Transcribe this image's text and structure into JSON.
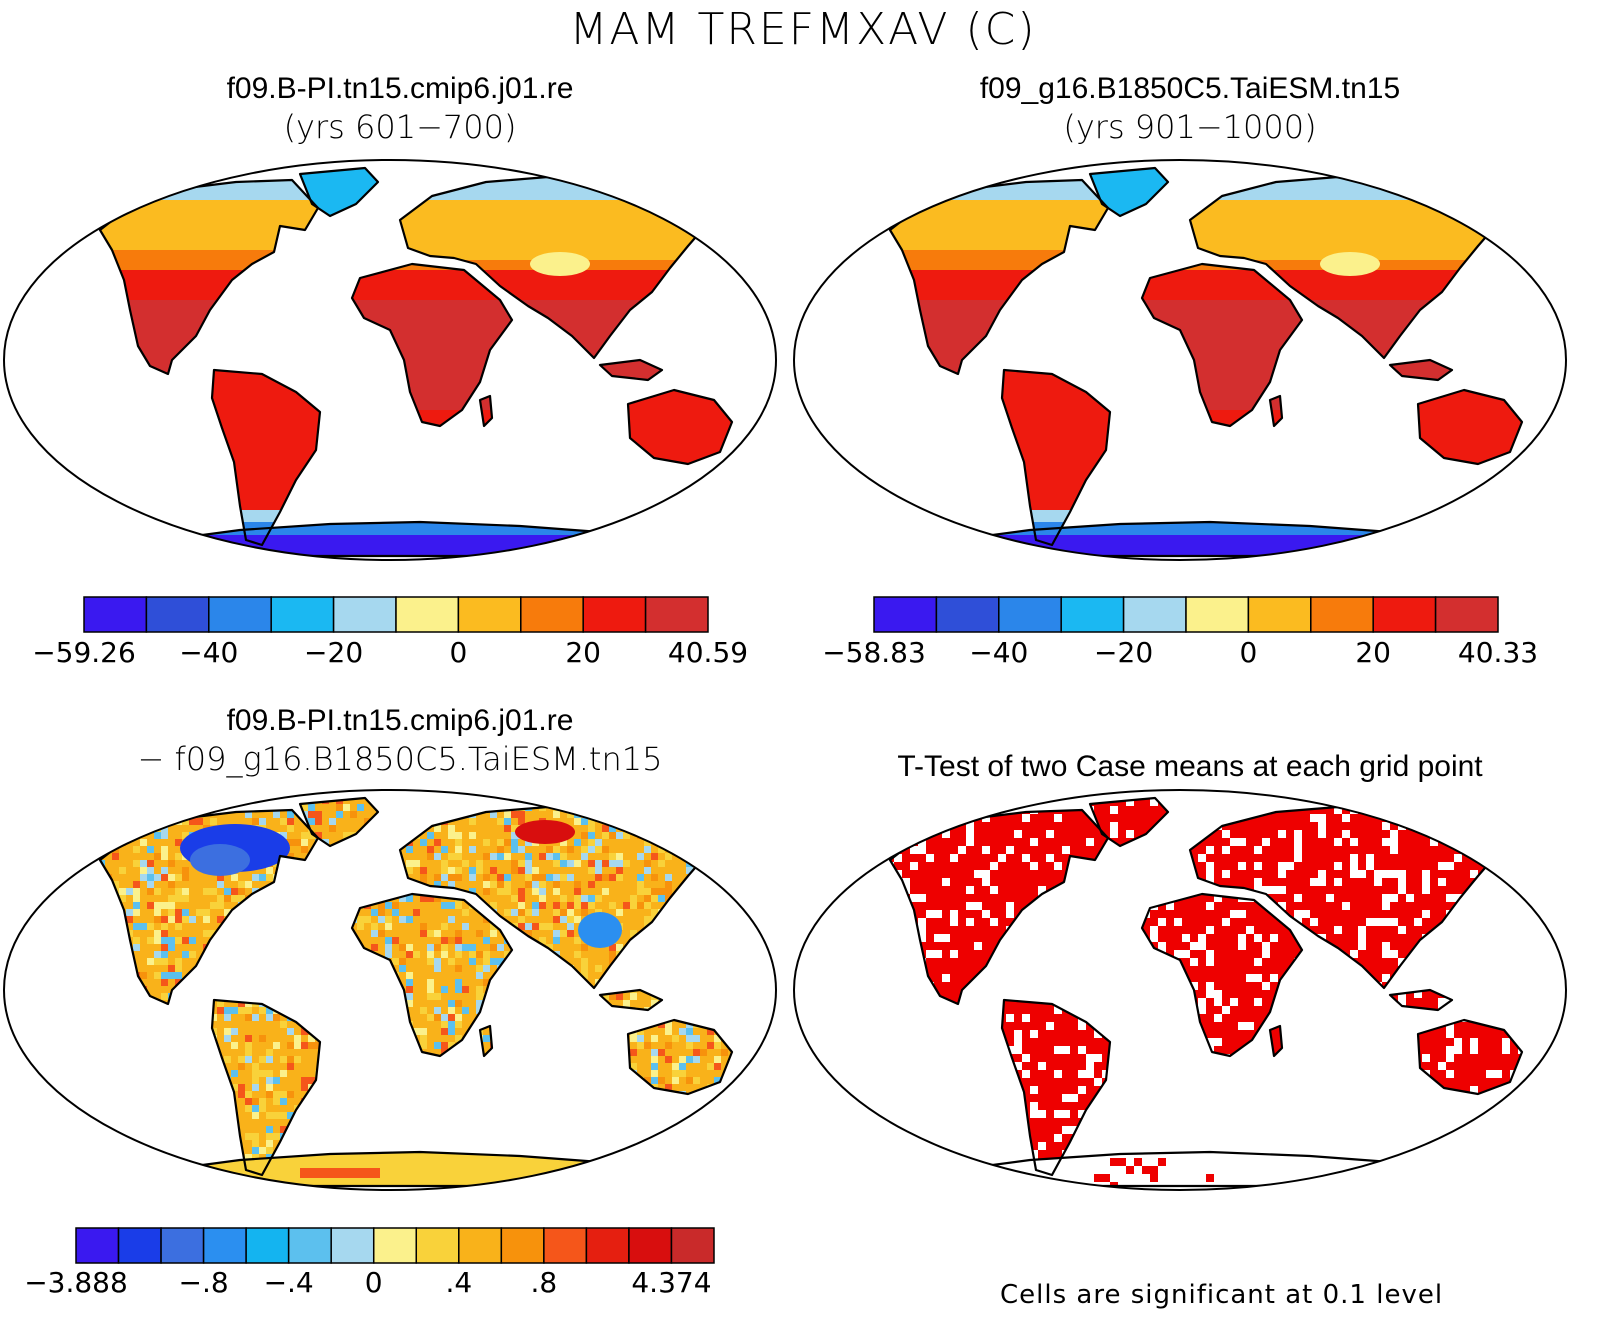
{
  "figure": {
    "title": "MAM TREFMXAV (C)",
    "footnote": "Cells are significant at 0.1 level"
  },
  "panels": [
    {
      "id": "case1",
      "title_line1": "f09.B-PI.tn15.cmip6.j01.re",
      "title_line2": "(yrs 601−700)",
      "colorbar": {
        "colors": [
          "#3a19f0",
          "#2f4fd8",
          "#2b86ea",
          "#1bb8f2",
          "#a6d8ef",
          "#fbf18c",
          "#fbbb20",
          "#f77b0c",
          "#ee1a0f",
          "#d32f2f"
        ],
        "labels": [
          {
            "text": "−59.26",
            "edge": 0
          },
          {
            "text": "−40",
            "edge": 2
          },
          {
            "text": "−20",
            "edge": 4
          },
          {
            "text": "0",
            "edge": 6
          },
          {
            "text": "20",
            "edge": 8
          },
          {
            "text": "40.59",
            "edge": 10
          }
        ]
      }
    },
    {
      "id": "case2",
      "title_line1": "f09_g16.B1850C5.TaiESM.tn15",
      "title_line2": "(yrs 901−1000)",
      "colorbar": {
        "colors": [
          "#3a19f0",
          "#2f4fd8",
          "#2b86ea",
          "#1bb8f2",
          "#a6d8ef",
          "#fbf18c",
          "#fbbb20",
          "#f77b0c",
          "#ee1a0f",
          "#d32f2f"
        ],
        "labels": [
          {
            "text": "−58.83",
            "edge": 0
          },
          {
            "text": "−40",
            "edge": 2
          },
          {
            "text": "−20",
            "edge": 4
          },
          {
            "text": "0",
            "edge": 6
          },
          {
            "text": "20",
            "edge": 8
          },
          {
            "text": "40.33",
            "edge": 10
          }
        ]
      }
    },
    {
      "id": "difference",
      "title_line1": "f09.B-PI.tn15.cmip6.j01.re",
      "title_line2": "− f09_g16.B1850C5.TaiESM.tn15",
      "colorbar": {
        "colors": [
          "#3a19f0",
          "#1a3de8",
          "#3c6fe0",
          "#2b8ff0",
          "#14b4f0",
          "#5cc0ee",
          "#a6d8ef",
          "#fbf18c",
          "#f9d23a",
          "#f9b21a",
          "#f7920c",
          "#f5561a",
          "#e51f10",
          "#d80e0e",
          "#c92a2a"
        ],
        "labels": [
          {
            "text": "−3.888",
            "edge": 0
          },
          {
            "text": "−.8",
            "edge": 3
          },
          {
            "text": "−.4",
            "edge": 5
          },
          {
            "text": "0",
            "edge": 7
          },
          {
            "text": ".4",
            "edge": 9
          },
          {
            "text": ".8",
            "edge": 11
          },
          {
            "text": "4.374",
            "edge": 14
          }
        ]
      }
    },
    {
      "id": "ttest",
      "title_line1": "T-Test of two Case means at each grid point"
    }
  ],
  "colors": {
    "continent_outline": "#000000",
    "significant": "#ee0000"
  }
}
